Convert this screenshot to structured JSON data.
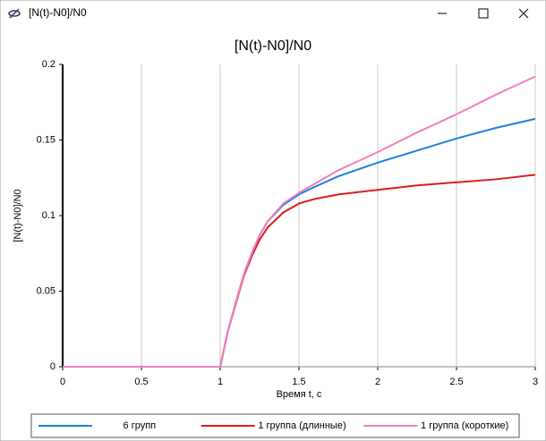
{
  "window": {
    "title": "[N(t)-N0]/N0"
  },
  "chart_data": {
    "type": "line",
    "title": "[N(t)-N0]/N0",
    "x_label": "Время t, c",
    "y_label": "[N(t)-N0]/N0",
    "x": [
      0,
      0.5,
      1,
      1.05,
      1.1,
      1.15,
      1.2,
      1.25,
      1.3,
      1.4,
      1.5,
      1.6,
      1.75,
      2,
      2.25,
      2.5,
      2.75,
      3
    ],
    "series": [
      {
        "name": "6 групп",
        "color": "#1f7fe0",
        "values": [
          0,
          0,
          0,
          0.024,
          0.043,
          0.061,
          0.075,
          0.087,
          0.096,
          0.107,
          0.114,
          0.119,
          0.126,
          0.135,
          0.143,
          0.151,
          0.158,
          0.164
        ]
      },
      {
        "name": "1 группа (длинные)",
        "color": "#dd1c1c",
        "values": [
          0,
          0,
          0,
          0.024,
          0.042,
          0.06,
          0.073,
          0.084,
          0.092,
          0.102,
          0.108,
          0.111,
          0.114,
          0.117,
          0.12,
          0.122,
          0.124,
          0.127
        ]
      },
      {
        "name": "1 группа (короткие)",
        "color": "#f07fbf",
        "values": [
          0,
          0,
          0,
          0.024,
          0.043,
          0.061,
          0.075,
          0.087,
          0.096,
          0.108,
          0.115,
          0.121,
          0.13,
          0.142,
          0.155,
          0.167,
          0.18,
          0.192
        ]
      }
    ],
    "xlim": [
      0,
      3
    ],
    "xticks": [
      0,
      0.5,
      1,
      1.5,
      2,
      2.5,
      3
    ],
    "ylim": [
      0,
      0.2
    ],
    "yticks": [
      0,
      0.05,
      0.1,
      0.15,
      0.2
    ],
    "grid": true,
    "legend": "bottom"
  }
}
